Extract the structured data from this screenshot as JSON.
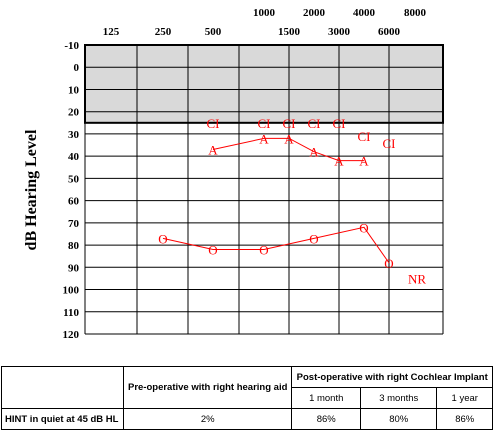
{
  "chart_data": {
    "type": "scatter",
    "ylabel": "dB Hearing Level",
    "x_ticks_row2": [
      "125",
      "250",
      "500",
      "1500",
      "3000",
      "6000"
    ],
    "x_ticks_row1": [
      "1000",
      "2000",
      "4000",
      "8000"
    ],
    "y_ticks": [
      "-10",
      "0",
      "10",
      "20",
      "30",
      "40",
      "50",
      "60",
      "70",
      "80",
      "90",
      "100",
      "110",
      "120"
    ],
    "ylim": [
      -10,
      120
    ],
    "shaded_region": {
      "from": -10,
      "to": 25
    },
    "series": [
      {
        "marker": "CI",
        "points": [
          {
            "x": "500",
            "y": 25
          },
          {
            "x": "1000",
            "y": 25
          },
          {
            "x": "1500",
            "y": 25
          },
          {
            "x": "2000",
            "y": 25
          },
          {
            "x": "3000",
            "y": 25
          },
          {
            "x": "4000",
            "y": 31
          },
          {
            "x": "6000",
            "y": 34
          }
        ]
      },
      {
        "marker": "A",
        "points": [
          {
            "x": "500",
            "y": 37
          },
          {
            "x": "1000",
            "y": 32
          },
          {
            "x": "1500",
            "y": 32
          },
          {
            "x": "2000",
            "y": 38
          },
          {
            "x": "3000",
            "y": 42
          },
          {
            "x": "4000",
            "y": 42
          }
        ]
      },
      {
        "marker": "O",
        "points": [
          {
            "x": "250",
            "y": 77
          },
          {
            "x": "500",
            "y": 82
          },
          {
            "x": "1000",
            "y": 82
          },
          {
            "x": "2000",
            "y": 77
          },
          {
            "x": "4000",
            "y": 72
          },
          {
            "x": "6000",
            "y": 88
          }
        ]
      }
    ],
    "annotations": [
      {
        "text": "NR",
        "x": "8000",
        "y": 95
      }
    ]
  },
  "table": {
    "header_pre": "Pre-operative with right hearing aid",
    "header_post": "Post-operative with right Cochlear Implant",
    "sub_cols": [
      "1 month",
      "3 months",
      "1 year"
    ],
    "row_label": "HINT in quiet at 45 dB HL",
    "values": [
      "2%",
      "86%",
      "80%",
      "86%"
    ]
  },
  "colors": {
    "marks": "#ff0000",
    "shade": "#d9d9d9",
    "lines": "#000000"
  }
}
